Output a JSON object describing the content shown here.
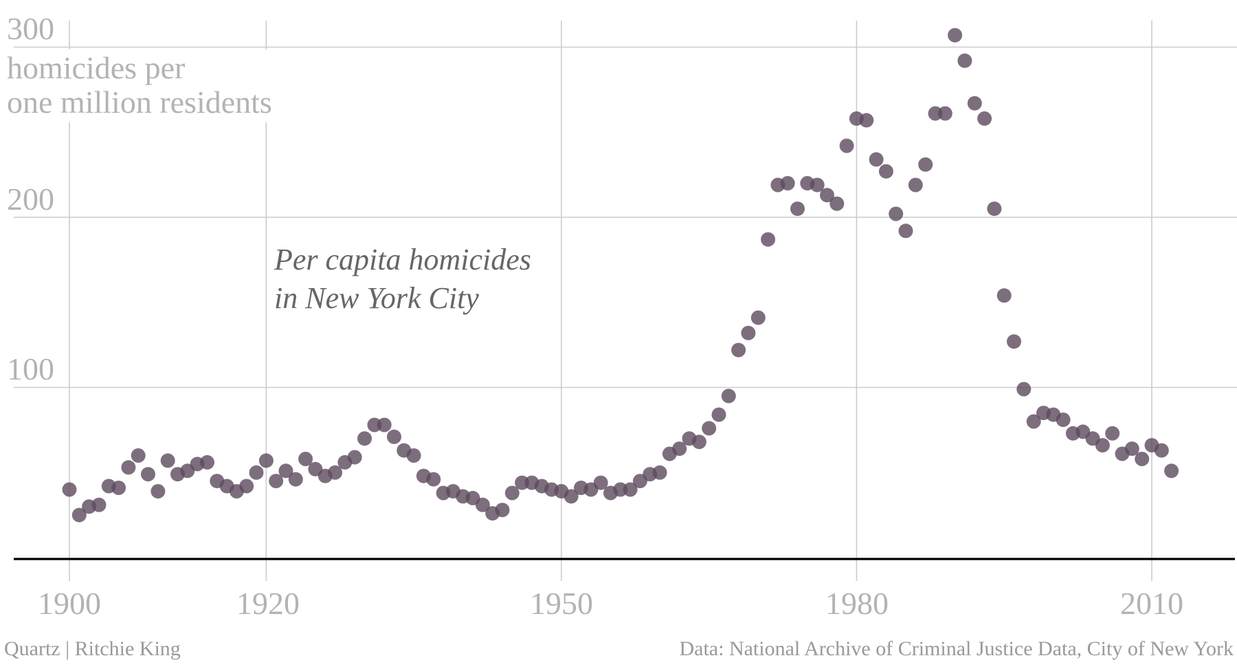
{
  "page": {
    "background": "#ffffff"
  },
  "colors": {
    "dot_fill": "rgb(93,74,94)",
    "dot_opacity": 0.8,
    "gridline": "#cccccc",
    "axis_line": "#000000",
    "tick_label": "#b3b3b3",
    "title_text": "#666666",
    "footer_text": "#999999"
  },
  "y_axis": {
    "unit_label_line1": "homicides per",
    "unit_label_line2": "one million residents",
    "ticks": [
      {
        "value": 300,
        "label": "300"
      },
      {
        "value": 200,
        "label": "200"
      },
      {
        "value": 100,
        "label": "100"
      }
    ]
  },
  "x_axis": {
    "ticks": [
      {
        "year": 1900,
        "label": "1900"
      },
      {
        "year": 1920,
        "label": "1920"
      },
      {
        "year": 1950,
        "label": "1950"
      },
      {
        "year": 1980,
        "label": "1980"
      },
      {
        "year": 2010,
        "label": "2010"
      }
    ]
  },
  "annotation": {
    "line1": "Per capita homicides",
    "line2": "in New York City"
  },
  "footer": {
    "left": "Quartz | Ritchie King",
    "right": "Data: National Archive of Criminal Justice Data, City of New York"
  },
  "chart_data": {
    "type": "scatter",
    "title": "Per capita homicides in New York City",
    "xlabel": "",
    "ylabel": "homicides per one million residents",
    "grid": true,
    "legend": "none",
    "xlim": [
      1894,
      2019
    ],
    "ylim": [
      0,
      325
    ],
    "x_tick_years": [
      1900,
      1920,
      1950,
      1980,
      2010
    ],
    "y_tick_values": [
      100,
      200,
      300
    ],
    "years": [
      1900,
      1901,
      1902,
      1903,
      1904,
      1905,
      1906,
      1907,
      1908,
      1909,
      1910,
      1911,
      1912,
      1913,
      1914,
      1915,
      1916,
      1917,
      1918,
      1919,
      1920,
      1921,
      1922,
      1923,
      1924,
      1925,
      1926,
      1927,
      1928,
      1929,
      1930,
      1931,
      1932,
      1933,
      1934,
      1935,
      1936,
      1937,
      1938,
      1939,
      1940,
      1941,
      1942,
      1943,
      1944,
      1945,
      1946,
      1947,
      1948,
      1949,
      1950,
      1951,
      1952,
      1953,
      1954,
      1955,
      1956,
      1957,
      1958,
      1959,
      1960,
      1961,
      1962,
      1963,
      1964,
      1965,
      1966,
      1967,
      1968,
      1969,
      1970,
      1971,
      1972,
      1973,
      1974,
      1975,
      1976,
      1977,
      1978,
      1979,
      1980,
      1981,
      1982,
      1983,
      1984,
      1985,
      1986,
      1987,
      1988,
      1989,
      1990,
      1991,
      1992,
      1993,
      1994,
      1995,
      1996,
      1997,
      1998,
      1999,
      2000,
      2001,
      2002,
      2003,
      2004,
      2005,
      2006,
      2007,
      2008,
      2009,
      2010,
      2011,
      2012
    ],
    "values": [
      40,
      25,
      30,
      31,
      42,
      41,
      53,
      60,
      49,
      39,
      57,
      49,
      51,
      55,
      56,
      45,
      42,
      39,
      42,
      50,
      57,
      45,
      51,
      46,
      58,
      52,
      48,
      50,
      56,
      59,
      70,
      78,
      78,
      71,
      63,
      60,
      48,
      46,
      38,
      39,
      36,
      35,
      31,
      26,
      28,
      38,
      44,
      44,
      42,
      40,
      39,
      36,
      41,
      40,
      44,
      38,
      40,
      40,
      45,
      49,
      50,
      61,
      64,
      70,
      68,
      76,
      84,
      95,
      122,
      132,
      141,
      187,
      219,
      220,
      205,
      220,
      219,
      213,
      208,
      242,
      258,
      257,
      234,
      227,
      202,
      192,
      219,
      231,
      261,
      261,
      307,
      292,
      267,
      258,
      205,
      154,
      127,
      99,
      80,
      85,
      84,
      81,
      73,
      74,
      70,
      66,
      73,
      61,
      64,
      58,
      66,
      63,
      51
    ]
  }
}
